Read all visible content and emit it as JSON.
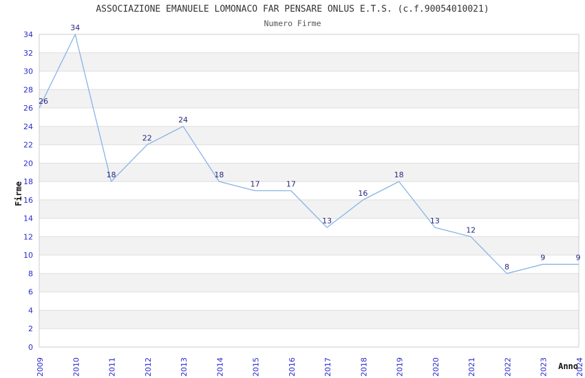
{
  "chart_data": {
    "type": "line",
    "title": "ASSOCIAZIONE EMANUELE LOMONACO FAR PENSARE ONLUS E.T.S. (c.f.90054010021)",
    "subtitle": "Numero Firme",
    "xlabel": "Anno",
    "ylabel": "Firme",
    "categories": [
      "2009",
      "2010",
      "2011",
      "2012",
      "2013",
      "2014",
      "2015",
      "2016",
      "2017",
      "2018",
      "2019",
      "2020",
      "2021",
      "2022",
      "2023",
      "2024"
    ],
    "series": [
      {
        "name": "Numero Firme",
        "values": [
          26,
          34,
          18,
          22,
          24,
          18,
          17,
          17,
          13,
          16,
          18,
          13,
          12,
          8,
          9,
          9
        ]
      }
    ],
    "ylim": [
      0,
      34
    ],
    "ytick_step": 2,
    "grid": true,
    "legend_position": "none",
    "band_pattern": "alternating horizontal stripes every 2 units",
    "colors": {
      "line": "#85b3e8",
      "data_label": "#28287d",
      "tick_label": "#2929cc",
      "grid_line": "#dedede",
      "plot_border": "#cccccc",
      "band": "#f2f2f2",
      "axis_title": "#111111"
    }
  }
}
